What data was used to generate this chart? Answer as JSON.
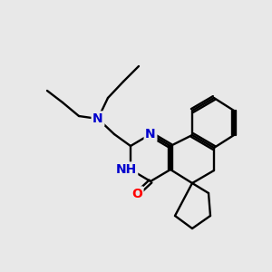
{
  "background_color": "#e8e8e8",
  "bond_color": "#000000",
  "atom_colors": {
    "N": "#0000cd",
    "O": "#ff0000",
    "H": "#000000",
    "C": "#000000"
  },
  "figsize": [
    3.0,
    3.0
  ],
  "dpi": 100
}
